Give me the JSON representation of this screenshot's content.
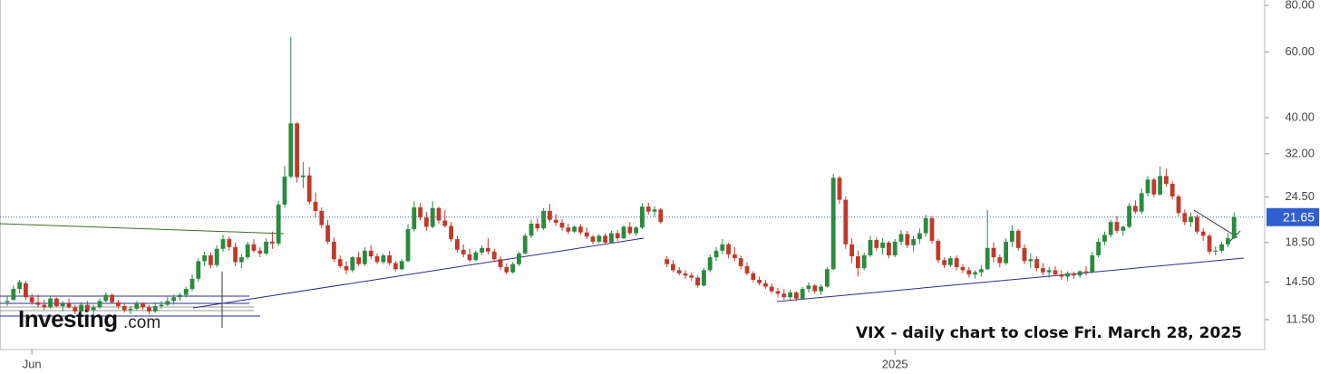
{
  "chart_data": {
    "type": "candlestick",
    "annotation": "VIX - daily chart to close Fri. March 28, 2025",
    "logo": {
      "brand": "Investing",
      "suffix": ".com"
    },
    "log_scale": true,
    "grid": false,
    "up_color": "#2a8a3e",
    "down_color": "#c0392b",
    "ylim": [
      9.56,
      82.7
    ],
    "yticks": [
      {
        "value": 11.5,
        "label": "11.50"
      },
      {
        "value": 14.5,
        "label": "14.50"
      },
      {
        "value": 18.5,
        "label": "18.50"
      },
      {
        "value": 24.5,
        "label": "24.50"
      },
      {
        "value": 32,
        "label": "32.00"
      },
      {
        "value": 40,
        "label": "40.00"
      },
      {
        "value": 60,
        "label": "60.00"
      },
      {
        "value": 80,
        "label": "80.00"
      }
    ],
    "price_line": {
      "value": 21.65,
      "label": "21.65",
      "color": "#2f5fd0"
    },
    "categories": [
      null,
      null,
      null,
      null,
      "Jun",
      null,
      null,
      null,
      null,
      null,
      null,
      null,
      null,
      null,
      null,
      null,
      null,
      null,
      null,
      null,
      null,
      null,
      null,
      null,
      null,
      null,
      null,
      null,
      null,
      null,
      null,
      null,
      null,
      null,
      null,
      null,
      null,
      null,
      null,
      null,
      null,
      null,
      null,
      null,
      null,
      null,
      null,
      null,
      null,
      null,
      null,
      null,
      null,
      null,
      null,
      null,
      null,
      null,
      null,
      null,
      null,
      null,
      null,
      null,
      null,
      null,
      null,
      null,
      null,
      null,
      null,
      null,
      null,
      null,
      null,
      null,
      null,
      null,
      null,
      null,
      null,
      null,
      null,
      null,
      null,
      null,
      null,
      null,
      null,
      null,
      null,
      null,
      null,
      null,
      null,
      null,
      null,
      null,
      null,
      null,
      null,
      null,
      null,
      null,
      null,
      null,
      null,
      null,
      null,
      null,
      null,
      null,
      null,
      null,
      null,
      null,
      null,
      null,
      null,
      null,
      null,
      null,
      null,
      null,
      null,
      null,
      null,
      null,
      null,
      null,
      null,
      null,
      null,
      null,
      null,
      null,
      null,
      null,
      null,
      null,
      null,
      null,
      null,
      null,
      "2025",
      null,
      null,
      null,
      null,
      null,
      null,
      null,
      null,
      null,
      null,
      null,
      null,
      null,
      null,
      null,
      null,
      null,
      null,
      null,
      null,
      null,
      null,
      null,
      null,
      null,
      null,
      null,
      null,
      null,
      null,
      null,
      null,
      null,
      null,
      null,
      null,
      null,
      null,
      null,
      null,
      null,
      null,
      null,
      null,
      null,
      null,
      null,
      null,
      null,
      null,
      null,
      null,
      null,
      null,
      null
    ],
    "candles": [
      [
        12.8,
        13.3,
        12.5,
        12.9
      ],
      [
        13.0,
        14.2,
        12.9,
        13.9
      ],
      [
        13.9,
        14.7,
        13.5,
        14.5
      ],
      [
        14.4,
        14.6,
        13.0,
        13.2
      ],
      [
        13.2,
        13.5,
        12.6,
        12.8
      ],
      [
        12.8,
        13.4,
        12.4,
        12.6
      ],
      [
        12.6,
        13.0,
        12.2,
        12.4
      ],
      [
        12.4,
        13.3,
        12.3,
        13.1
      ],
      [
        13.1,
        13.2,
        12.4,
        12.5
      ],
      [
        12.5,
        12.9,
        12.1,
        12.7
      ],
      [
        12.7,
        13.1,
        12.3,
        12.4
      ],
      [
        12.4,
        12.6,
        11.9,
        12.1
      ],
      [
        12.1,
        12.8,
        12.0,
        12.6
      ],
      [
        12.6,
        12.9,
        12.1,
        12.2
      ],
      [
        12.2,
        12.6,
        11.8,
        12.4
      ],
      [
        12.4,
        13.1,
        12.3,
        12.9
      ],
      [
        12.9,
        13.6,
        12.8,
        13.4
      ],
      [
        13.4,
        13.5,
        12.7,
        12.8
      ],
      [
        12.8,
        13.0,
        12.3,
        12.5
      ],
      [
        12.5,
        12.7,
        12.0,
        12.2
      ],
      [
        12.2,
        12.5,
        11.9,
        12.3
      ],
      [
        12.3,
        12.9,
        12.2,
        12.7
      ],
      [
        12.7,
        12.8,
        12.2,
        12.4
      ],
      [
        12.4,
        12.6,
        11.9,
        12.1
      ],
      [
        12.1,
        12.8,
        12.0,
        12.5
      ],
      [
        12.5,
        12.9,
        12.3,
        12.6
      ],
      [
        12.6,
        13.2,
        12.5,
        12.9
      ],
      [
        12.9,
        13.4,
        12.6,
        13.2
      ],
      [
        13.2,
        13.6,
        12.9,
        13.4
      ],
      [
        13.4,
        14.1,
        13.2,
        13.9
      ],
      [
        13.9,
        15.2,
        13.7,
        14.8
      ],
      [
        14.8,
        16.8,
        14.5,
        16.5
      ],
      [
        16.5,
        17.5,
        16.0,
        17.1
      ],
      [
        17.1,
        17.4,
        15.8,
        16.1
      ],
      [
        16.1,
        18.2,
        15.9,
        17.8
      ],
      [
        17.8,
        19.4,
        17.5,
        18.9
      ],
      [
        18.9,
        19.2,
        17.6,
        18.0
      ],
      [
        18.0,
        18.5,
        16.0,
        16.4
      ],
      [
        16.4,
        17.2,
        15.8,
        16.9
      ],
      [
        16.9,
        18.6,
        16.7,
        18.3
      ],
      [
        18.3,
        18.9,
        17.4,
        17.6
      ],
      [
        17.6,
        18.0,
        16.9,
        17.3
      ],
      [
        17.3,
        19.0,
        17.1,
        18.6
      ],
      [
        18.6,
        19.8,
        17.8,
        18.4
      ],
      [
        18.4,
        23.9,
        18.1,
        23.4
      ],
      [
        23.4,
        29.7,
        23.0,
        27.8
      ],
      [
        27.8,
        65.7,
        27.5,
        38.6
      ],
      [
        38.6,
        38.9,
        26.8,
        27.7
      ],
      [
        27.7,
        30.4,
        25.9,
        28.0
      ],
      [
        28.0,
        29.5,
        23.4,
        23.8
      ],
      [
        23.8,
        25.2,
        21.6,
        22.5
      ],
      [
        22.5,
        23.0,
        20.2,
        20.6
      ],
      [
        20.6,
        21.3,
        18.3,
        18.6
      ],
      [
        18.6,
        19.1,
        16.4,
        16.7
      ],
      [
        16.7,
        17.1,
        15.8,
        16.0
      ],
      [
        16.0,
        16.5,
        15.2,
        15.6
      ],
      [
        15.6,
        17.0,
        15.4,
        16.9
      ],
      [
        16.9,
        17.5,
        16.0,
        16.2
      ],
      [
        16.2,
        18.0,
        16.0,
        17.6
      ],
      [
        17.6,
        18.2,
        16.7,
        17.0
      ],
      [
        17.0,
        17.3,
        16.2,
        16.4
      ],
      [
        16.4,
        17.3,
        16.2,
        17.1
      ],
      [
        17.1,
        17.6,
        16.1,
        16.3
      ],
      [
        16.3,
        16.5,
        15.5,
        15.7
      ],
      [
        15.7,
        16.7,
        15.6,
        16.5
      ],
      [
        16.5,
        20.7,
        16.4,
        20.1
      ],
      [
        20.1,
        23.9,
        19.8,
        23.0
      ],
      [
        23.0,
        23.6,
        21.2,
        21.6
      ],
      [
        21.6,
        22.4,
        19.9,
        20.4
      ],
      [
        20.4,
        23.9,
        20.2,
        22.9
      ],
      [
        22.9,
        23.1,
        20.8,
        21.2
      ],
      [
        21.2,
        22.6,
        20.3,
        20.5
      ],
      [
        20.5,
        21.0,
        18.6,
        18.9
      ],
      [
        18.9,
        19.3,
        17.4,
        17.7
      ],
      [
        17.7,
        18.3,
        16.9,
        17.2
      ],
      [
        17.2,
        17.8,
        16.4,
        16.6
      ],
      [
        16.6,
        17.6,
        16.5,
        17.4
      ],
      [
        17.4,
        18.2,
        17.1,
        17.9
      ],
      [
        17.9,
        19.0,
        17.2,
        17.5
      ],
      [
        17.5,
        17.8,
        16.4,
        16.7
      ],
      [
        16.7,
        17.0,
        15.6,
        15.9
      ],
      [
        15.9,
        16.3,
        15.2,
        15.4
      ],
      [
        15.4,
        16.4,
        15.3,
        16.2
      ],
      [
        16.2,
        17.5,
        16.0,
        17.3
      ],
      [
        17.3,
        19.6,
        17.2,
        19.3
      ],
      [
        19.3,
        21.3,
        19.0,
        20.8
      ],
      [
        20.8,
        21.5,
        19.8,
        20.2
      ],
      [
        20.2,
        22.9,
        20.0,
        22.5
      ],
      [
        22.5,
        23.5,
        21.0,
        21.3
      ],
      [
        21.3,
        22.1,
        20.5,
        20.9
      ],
      [
        20.9,
        21.4,
        19.9,
        20.3
      ],
      [
        20.3,
        20.8,
        19.5,
        19.8
      ],
      [
        19.8,
        20.6,
        19.6,
        20.4
      ],
      [
        20.4,
        20.7,
        19.4,
        19.7
      ],
      [
        19.7,
        20.3,
        18.9,
        19.2
      ],
      [
        19.2,
        19.4,
        18.3,
        18.6
      ],
      [
        18.6,
        19.5,
        18.4,
        19.3
      ],
      [
        19.3,
        19.6,
        18.3,
        18.5
      ],
      [
        18.5,
        19.9,
        18.4,
        19.6
      ],
      [
        19.6,
        20.0,
        18.7,
        19.0
      ],
      [
        19.0,
        20.6,
        18.9,
        20.4
      ],
      [
        20.4,
        21.0,
        19.4,
        19.6
      ],
      [
        19.6,
        20.5,
        19.3,
        20.3
      ],
      [
        20.3,
        23.6,
        20.1,
        23.1
      ],
      [
        23.1,
        23.7,
        22.0,
        22.4
      ],
      [
        22.4,
        23.2,
        21.7,
        22.7
      ],
      [
        22.7,
        22.9,
        20.8,
        21.0
      ],
      [
        16.7,
        17.0,
        15.9,
        16.2
      ],
      [
        16.2,
        16.6,
        15.4,
        15.6
      ],
      [
        15.6,
        15.9,
        15.1,
        15.3
      ],
      [
        15.3,
        15.6,
        14.8,
        15.1
      ],
      [
        15.1,
        15.4,
        14.6,
        14.9
      ],
      [
        14.9,
        15.1,
        14.0,
        14.2
      ],
      [
        14.2,
        15.8,
        14.1,
        15.6
      ],
      [
        15.6,
        17.2,
        15.4,
        16.9
      ],
      [
        16.9,
        18.0,
        16.5,
        17.6
      ],
      [
        17.6,
        18.9,
        17.2,
        18.3
      ],
      [
        18.3,
        18.5,
        16.8,
        17.2
      ],
      [
        17.2,
        18.0,
        16.5,
        16.8
      ],
      [
        16.8,
        17.1,
        15.7,
        16.0
      ],
      [
        16.0,
        16.4,
        15.1,
        15.3
      ],
      [
        15.3,
        15.5,
        14.5,
        14.7
      ],
      [
        14.7,
        15.0,
        14.2,
        14.4
      ],
      [
        14.4,
        14.7,
        13.9,
        14.1
      ],
      [
        14.1,
        14.4,
        13.5,
        13.7
      ],
      [
        13.7,
        14.0,
        13.2,
        13.5
      ],
      [
        13.5,
        13.9,
        13.0,
        13.2
      ],
      [
        13.2,
        13.8,
        13.0,
        13.6
      ],
      [
        13.6,
        13.7,
        12.9,
        13.1
      ],
      [
        13.1,
        14.1,
        13.0,
        13.9
      ],
      [
        13.9,
        14.5,
        13.6,
        14.2
      ],
      [
        14.2,
        14.3,
        13.5,
        13.7
      ],
      [
        13.7,
        14.3,
        13.4,
        14.1
      ],
      [
        14.1,
        15.9,
        14.0,
        15.7
      ],
      [
        15.7,
        28.3,
        15.6,
        27.6
      ],
      [
        27.6,
        27.9,
        23.5,
        24.1
      ],
      [
        24.1,
        24.6,
        17.8,
        18.3
      ],
      [
        18.3,
        19.0,
        16.3,
        17.0
      ],
      [
        17.0,
        17.6,
        15.0,
        15.8
      ],
      [
        15.8,
        17.4,
        15.6,
        17.1
      ],
      [
        17.1,
        19.3,
        16.9,
        18.8
      ],
      [
        18.8,
        19.1,
        17.6,
        17.9
      ],
      [
        17.9,
        19.0,
        17.2,
        18.5
      ],
      [
        18.5,
        18.7,
        16.8,
        17.1
      ],
      [
        17.1,
        18.9,
        16.9,
        18.6
      ],
      [
        18.6,
        20.0,
        18.2,
        19.5
      ],
      [
        19.5,
        19.9,
        17.9,
        18.2
      ],
      [
        18.2,
        19.3,
        17.5,
        18.9
      ],
      [
        18.9,
        20.2,
        18.4,
        19.6
      ],
      [
        19.6,
        22.0,
        19.2,
        21.5
      ],
      [
        21.5,
        21.8,
        18.4,
        18.7
      ],
      [
        18.7,
        18.9,
        16.3,
        16.6
      ],
      [
        16.6,
        16.9,
        15.8,
        16.1
      ],
      [
        16.1,
        17.0,
        15.9,
        16.8
      ],
      [
        16.8,
        17.1,
        15.6,
        15.9
      ],
      [
        15.9,
        16.2,
        15.3,
        15.6
      ],
      [
        15.6,
        15.9,
        14.9,
        15.2
      ],
      [
        15.2,
        15.6,
        14.8,
        15.4
      ],
      [
        15.4,
        16.1,
        15.0,
        15.7
      ],
      [
        15.7,
        22.6,
        15.6,
        17.9
      ],
      [
        17.9,
        18.5,
        16.4,
        16.9
      ],
      [
        16.9,
        17.2,
        15.9,
        16.3
      ],
      [
        16.3,
        19.0,
        16.1,
        18.6
      ],
      [
        18.6,
        20.6,
        18.0,
        19.9
      ],
      [
        19.9,
        20.1,
        17.6,
        17.9
      ],
      [
        17.9,
        18.3,
        16.2,
        16.5
      ],
      [
        16.5,
        17.3,
        15.8,
        16.7
      ],
      [
        16.7,
        17.0,
        15.5,
        15.8
      ],
      [
        15.8,
        16.3,
        15.1,
        15.4
      ],
      [
        15.4,
        15.9,
        14.9,
        15.6
      ],
      [
        15.6,
        16.0,
        15.0,
        15.2
      ],
      [
        15.2,
        15.6,
        14.7,
        15.0
      ],
      [
        15.0,
        15.5,
        14.6,
        15.3
      ],
      [
        15.3,
        15.5,
        14.8,
        15.1
      ],
      [
        15.1,
        15.6,
        14.9,
        15.5
      ],
      [
        15.5,
        16.0,
        15.1,
        15.4
      ],
      [
        15.4,
        17.5,
        15.3,
        17.1
      ],
      [
        17.1,
        19.0,
        16.9,
        18.6
      ],
      [
        18.6,
        19.8,
        18.2,
        19.4
      ],
      [
        19.4,
        21.3,
        19.1,
        21.0
      ],
      [
        21.0,
        21.8,
        19.6,
        19.9
      ],
      [
        19.9,
        20.5,
        19.3,
        20.4
      ],
      [
        20.4,
        23.6,
        20.2,
        23.2
      ],
      [
        23.2,
        24.0,
        22.1,
        22.4
      ],
      [
        22.4,
        25.8,
        22.0,
        25.1
      ],
      [
        25.1,
        27.9,
        24.6,
        27.3
      ],
      [
        27.3,
        27.6,
        24.5,
        24.9
      ],
      [
        24.9,
        29.6,
        24.7,
        27.9
      ],
      [
        27.9,
        29.2,
        26.1,
        26.6
      ],
      [
        26.6,
        27.0,
        24.2,
        24.6
      ],
      [
        24.6,
        24.9,
        21.8,
        22.2
      ],
      [
        22.2,
        22.7,
        20.6,
        21.0
      ],
      [
        21.0,
        22.3,
        20.4,
        21.7
      ],
      [
        21.7,
        22.0,
        19.5,
        19.8
      ],
      [
        19.8,
        20.2,
        18.7,
        19.3
      ],
      [
        19.3,
        19.5,
        17.2,
        17.5
      ],
      [
        17.5,
        18.1,
        17.1,
        17.6
      ],
      [
        17.6,
        18.6,
        17.4,
        18.3
      ],
      [
        18.3,
        19.6,
        18.0,
        19.0
      ],
      [
        19.0,
        22.3,
        18.9,
        21.65
      ]
    ]
  }
}
